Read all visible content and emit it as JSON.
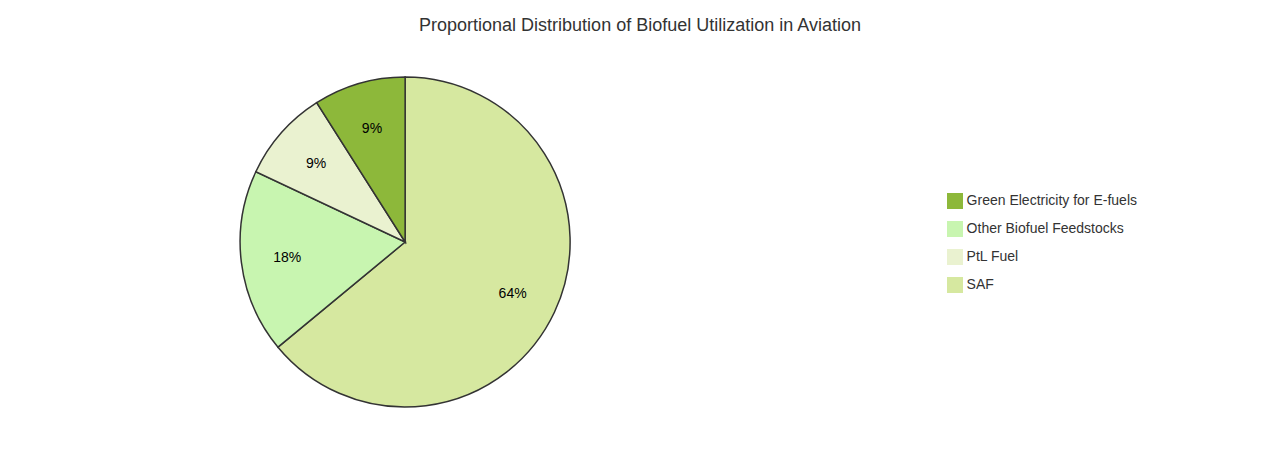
{
  "chart_data": {
    "type": "pie",
    "title": "Proportional Distribution of Biofuel Utilization in Aviation",
    "categories": [
      "SAF",
      "Other Biofuel Feedstocks",
      "PtL Fuel",
      "Green Electricity for E-fuels"
    ],
    "values": [
      64,
      18,
      9,
      9
    ],
    "value_labels": [
      "64%",
      "18%",
      "9%",
      "9%"
    ],
    "colors": [
      "#d6e8a0",
      "#c8f5b0",
      "#eaf2d0",
      "#8db83a"
    ],
    "data_labels": true,
    "legend": "right"
  }
}
